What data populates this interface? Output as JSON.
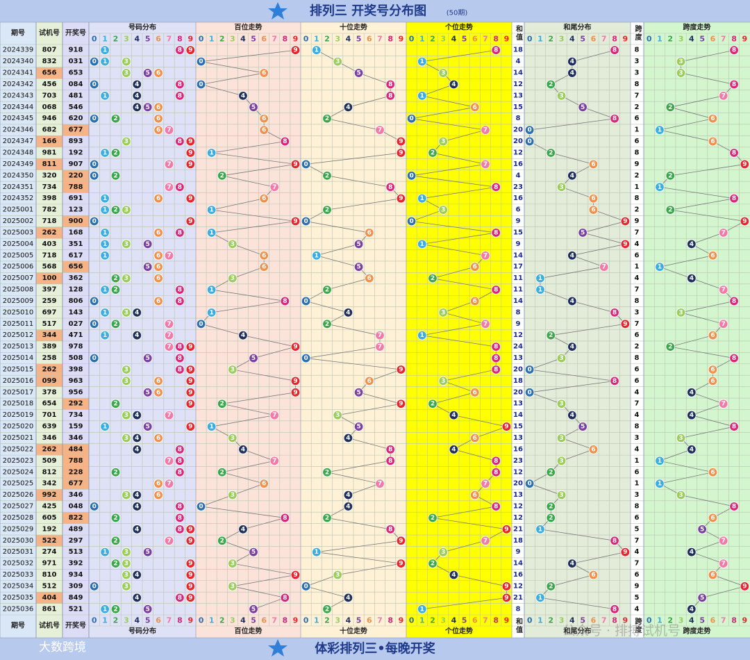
{
  "header": {
    "title": "排列三 开奖号分布图",
    "subtitle": "(50期)"
  },
  "columns": {
    "period": "期号",
    "trial": "试机号",
    "draw": "开奖号",
    "distribution": "号码分布",
    "hundreds": "百位走势",
    "tens": "十位走势",
    "units": "个位走势",
    "sum": "和值",
    "sum_tail": "和尾分布",
    "span": "跨度",
    "span_trend": "跨度走势"
  },
  "digits": [
    0,
    1,
    2,
    3,
    4,
    5,
    6,
    7,
    8,
    9
  ],
  "rows": [
    [
      "2024339",
      "807",
      "918",
      18,
      8
    ],
    [
      "2024340",
      "832",
      "031",
      4,
      3
    ],
    [
      "2024341",
      "656",
      "653",
      14,
      3
    ],
    [
      "2024342",
      "456",
      "084",
      12,
      8
    ],
    [
      "2024343",
      "703",
      "481",
      13,
      7
    ],
    [
      "2024344",
      "068",
      "546",
      15,
      2
    ],
    [
      "2024345",
      "946",
      "620",
      8,
      6
    ],
    [
      "2024346",
      "682",
      "677",
      20,
      1
    ],
    [
      "2024347",
      "166",
      "893",
      20,
      6
    ],
    [
      "2024348",
      "981",
      "192",
      12,
      8
    ],
    [
      "2024349",
      "811",
      "907",
      16,
      9
    ],
    [
      "2024350",
      "320",
      "220",
      4,
      2
    ],
    [
      "2024351",
      "734",
      "788",
      23,
      1
    ],
    [
      "2024352",
      "398",
      "691",
      16,
      8
    ],
    [
      "2025001",
      "782",
      "123",
      6,
      2
    ],
    [
      "2025002",
      "718",
      "900",
      9,
      9
    ],
    [
      "2025003",
      "262",
      "168",
      15,
      7
    ],
    [
      "2025004",
      "403",
      "351",
      9,
      4
    ],
    [
      "2025005",
      "718",
      "617",
      14,
      6
    ],
    [
      "2025006",
      "568",
      "656",
      17,
      1
    ],
    [
      "2025007",
      "100",
      "362",
      11,
      4
    ],
    [
      "2025008",
      "397",
      "128",
      11,
      7
    ],
    [
      "2025009",
      "259",
      "806",
      14,
      8
    ],
    [
      "2025010",
      "697",
      "143",
      8,
      3
    ],
    [
      "2025011",
      "517",
      "027",
      9,
      7
    ],
    [
      "2025012",
      "344",
      "471",
      12,
      6
    ],
    [
      "2025013",
      "389",
      "978",
      24,
      2
    ],
    [
      "2025014",
      "258",
      "508",
      13,
      8
    ],
    [
      "2025015",
      "262",
      "398",
      20,
      6
    ],
    [
      "2025016",
      "099",
      "963",
      18,
      6
    ],
    [
      "2025017",
      "378",
      "956",
      20,
      4
    ],
    [
      "2025018",
      "654",
      "292",
      13,
      7
    ],
    [
      "2025019",
      "701",
      "734",
      14,
      4
    ],
    [
      "2025020",
      "639",
      "159",
      15,
      8
    ],
    [
      "2025021",
      "346",
      "346",
      13,
      3
    ],
    [
      "2025022",
      "262",
      "484",
      16,
      4
    ],
    [
      "2025023",
      "509",
      "788",
      23,
      1
    ],
    [
      "2025024",
      "812",
      "228",
      12,
      6
    ],
    [
      "2025025",
      "342",
      "677",
      20,
      1
    ],
    [
      "2025026",
      "992",
      "346",
      13,
      3
    ],
    [
      "2025027",
      "425",
      "048",
      12,
      8
    ],
    [
      "2025028",
      "605",
      "822",
      12,
      6
    ],
    [
      "2025029",
      "192",
      "489",
      21,
      5
    ],
    [
      "2025030",
      "522",
      "297",
      18,
      7
    ],
    [
      "2025031",
      "274",
      "513",
      9,
      4
    ],
    [
      "2025032",
      "971",
      "392",
      14,
      7
    ],
    [
      "2025033",
      "810",
      "934",
      16,
      6
    ],
    [
      "2025034",
      "512",
      "309",
      12,
      9
    ],
    [
      "2025035",
      "404",
      "849",
      21,
      5
    ],
    [
      "2025036",
      "861",
      "521",
      8,
      4
    ]
  ],
  "footer": {
    "banner": "体彩排列三•每晚开奖",
    "logo": "大数跨境",
    "watermark": "公众号 · 排搏试机号"
  }
}
